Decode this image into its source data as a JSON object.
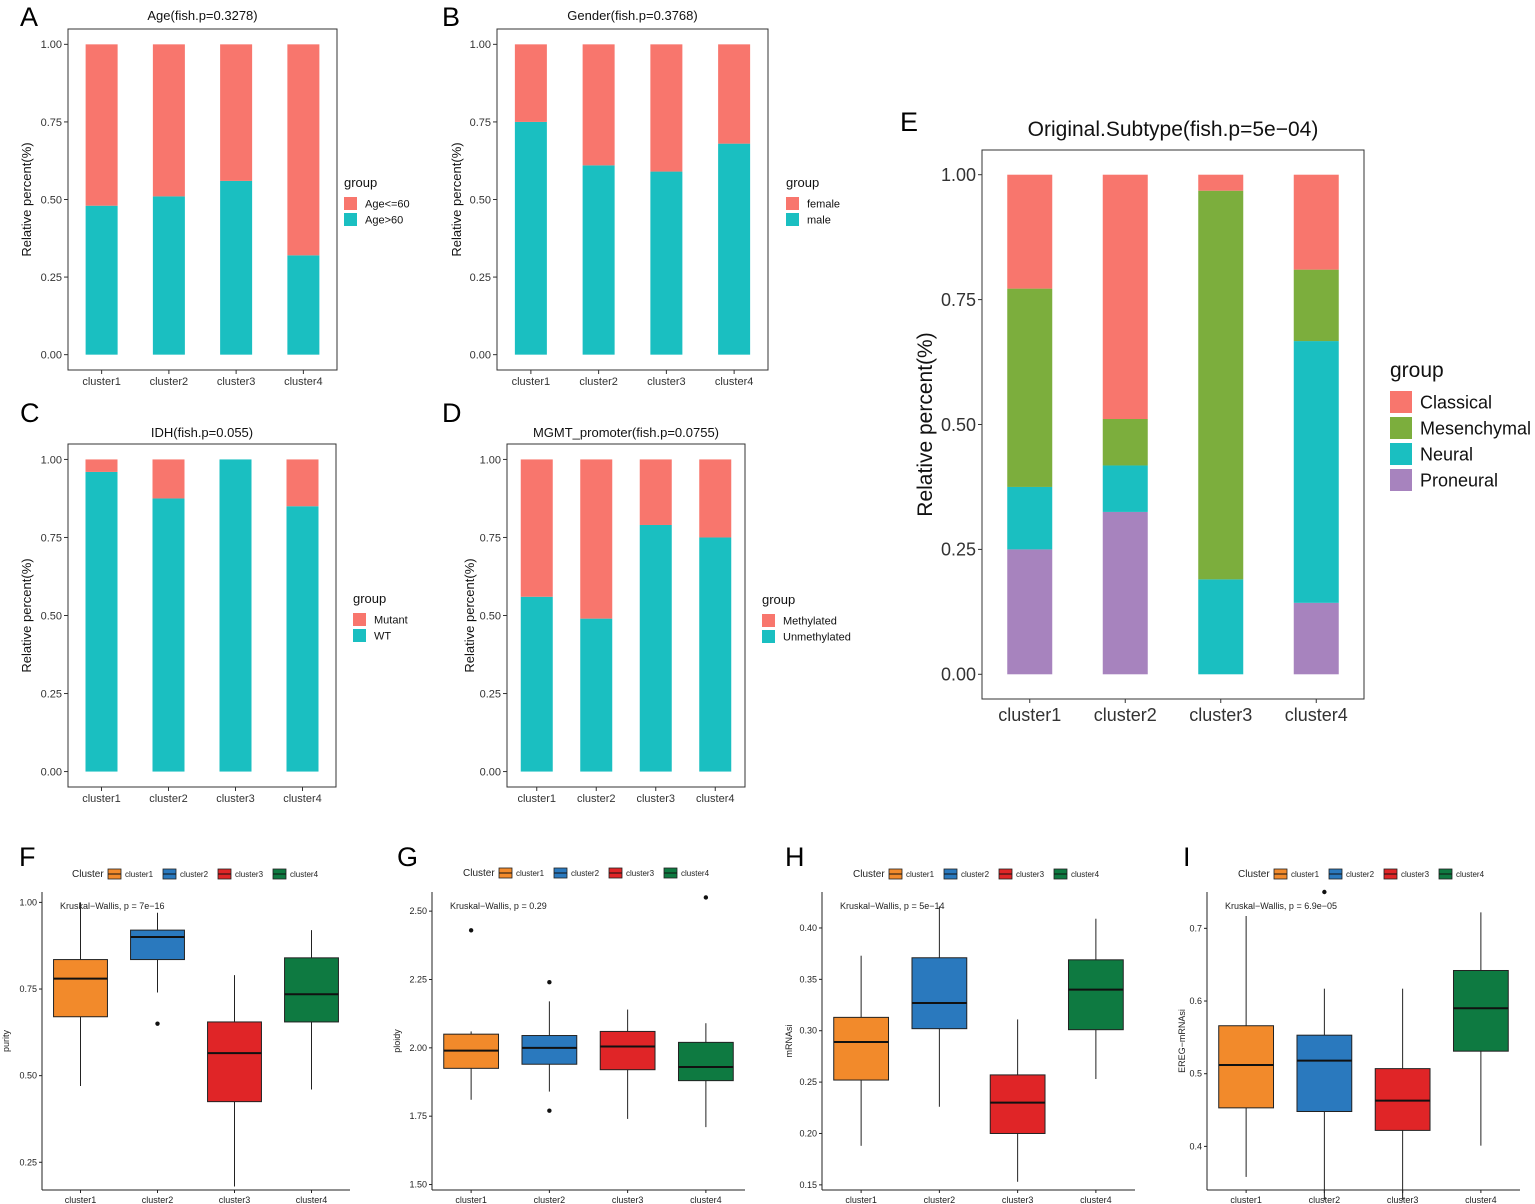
{
  "categories": [
    "cluster1",
    "cluster2",
    "cluster3",
    "cluster4"
  ],
  "colors": {
    "red": "#F8766D",
    "teal": "#1ABFC1",
    "green": "#7CAE3D",
    "purple": "#A783BE",
    "c1": "#F28A2B",
    "c2": "#2A79BE",
    "c3": "#E02527",
    "c4": "#0E7A41"
  },
  "chart_data": [
    {
      "panel": "A",
      "type": "bar",
      "stacked": true,
      "title": "Age(fish.p=0.3278)",
      "ylabel": "Relative percent(%)",
      "xlabel": "",
      "ylim": [
        0,
        1
      ],
      "yticks": [
        "0.00",
        "0.25",
        "0.50",
        "0.75",
        "1.00"
      ],
      "categories": [
        "cluster1",
        "cluster2",
        "cluster3",
        "cluster4"
      ],
      "legend_title": "group",
      "legend": [
        "Age<=60",
        "Age>60"
      ],
      "series": [
        {
          "name": "Age>60",
          "color": "teal",
          "values": [
            0.48,
            0.51,
            0.56,
            0.32
          ]
        },
        {
          "name": "Age<=60",
          "color": "red",
          "values": [
            0.52,
            0.49,
            0.44,
            0.68
          ]
        }
      ]
    },
    {
      "panel": "B",
      "type": "bar",
      "stacked": true,
      "title": "Gender(fish.p=0.3768)",
      "ylabel": "Relative percent(%)",
      "xlabel": "",
      "ylim": [
        0,
        1
      ],
      "yticks": [
        "0.00",
        "0.25",
        "0.50",
        "0.75",
        "1.00"
      ],
      "categories": [
        "cluster1",
        "cluster2",
        "cluster3",
        "cluster4"
      ],
      "legend_title": "group",
      "legend": [
        "female",
        "male"
      ],
      "series": [
        {
          "name": "male",
          "color": "teal",
          "values": [
            0.75,
            0.61,
            0.59,
            0.68
          ]
        },
        {
          "name": "female",
          "color": "red",
          "values": [
            0.25,
            0.39,
            0.41,
            0.32
          ]
        }
      ]
    },
    {
      "panel": "C",
      "type": "bar",
      "stacked": true,
      "title": "IDH(fish.p=0.055)",
      "ylabel": "Relative percent(%)",
      "xlabel": "",
      "ylim": [
        0,
        1
      ],
      "yticks": [
        "0.00",
        "0.25",
        "0.50",
        "0.75",
        "1.00"
      ],
      "categories": [
        "cluster1",
        "cluster2",
        "cluster3",
        "cluster4"
      ],
      "legend_title": "group",
      "legend": [
        "Mutant",
        "WT"
      ],
      "series": [
        {
          "name": "WT",
          "color": "teal",
          "values": [
            0.96,
            0.875,
            1.0,
            0.85
          ]
        },
        {
          "name": "Mutant",
          "color": "red",
          "values": [
            0.04,
            0.125,
            0.0,
            0.15
          ]
        }
      ]
    },
    {
      "panel": "D",
      "type": "bar",
      "stacked": true,
      "title": "MGMT_promoter(fish.p=0.0755)",
      "ylabel": "Relative percent(%)",
      "xlabel": "",
      "ylim": [
        0,
        1
      ],
      "yticks": [
        "0.00",
        "0.25",
        "0.50",
        "0.75",
        "1.00"
      ],
      "categories": [
        "cluster1",
        "cluster2",
        "cluster3",
        "cluster4"
      ],
      "legend_title": "group",
      "legend": [
        "Methylated",
        "Unmethylated"
      ],
      "series": [
        {
          "name": "Unmethylated",
          "color": "teal",
          "values": [
            0.56,
            0.49,
            0.79,
            0.75
          ]
        },
        {
          "name": "Methylated",
          "color": "red",
          "values": [
            0.44,
            0.51,
            0.21,
            0.25
          ]
        }
      ]
    },
    {
      "panel": "E",
      "type": "bar",
      "stacked": true,
      "title": "Original.Subtype(fish.p=5e−04)",
      "ylabel": "Relative percent(%)",
      "xlabel": "",
      "ylim": [
        0,
        1
      ],
      "yticks": [
        "0.00",
        "0.25",
        "0.50",
        "0.75",
        "1.00"
      ],
      "categories": [
        "cluster1",
        "cluster2",
        "cluster3",
        "cluster4"
      ],
      "legend_title": "group",
      "legend": [
        "Classical",
        "Mesenchymal",
        "Neural",
        "Proneural"
      ],
      "series": [
        {
          "name": "Proneural",
          "color": "purple",
          "values": [
            0.25,
            0.325,
            0.0,
            0.143
          ]
        },
        {
          "name": "Neural",
          "color": "teal",
          "values": [
            0.125,
            0.093,
            0.19,
            0.524
          ]
        },
        {
          "name": "Mesenchymal",
          "color": "green",
          "values": [
            0.397,
            0.093,
            0.778,
            0.143
          ]
        },
        {
          "name": "Classical",
          "color": "red",
          "values": [
            0.228,
            0.489,
            0.032,
            0.19
          ]
        }
      ]
    },
    {
      "panel": "F",
      "type": "box",
      "title": "",
      "ylabel": "purity",
      "xlabel": "",
      "annotation": "Kruskal−Wallis, p = 7e−16",
      "ylim": [
        0.17,
        1.03
      ],
      "yticks": [
        0.25,
        0.5,
        0.75,
        1.0
      ],
      "tick_labels": [
        "0.25",
        "0.50",
        "0.75",
        "1.00"
      ],
      "legend_title": "Cluster",
      "legend": [
        "cluster1",
        "cluster2",
        "cluster3",
        "cluster4"
      ],
      "categories": [
        "cluster1",
        "cluster2",
        "cluster3",
        "cluster4"
      ],
      "boxes": [
        {
          "min": 0.47,
          "q1": 0.67,
          "median": 0.78,
          "q3": 0.835,
          "max": 1.0,
          "outliers": []
        },
        {
          "min": 0.74,
          "q1": 0.835,
          "median": 0.9,
          "q3": 0.92,
          "max": 0.97,
          "outliers": [
            0.65
          ]
        },
        {
          "min": 0.18,
          "q1": 0.425,
          "median": 0.565,
          "q3": 0.655,
          "max": 0.79,
          "outliers": []
        },
        {
          "min": 0.46,
          "q1": 0.655,
          "median": 0.735,
          "q3": 0.84,
          "max": 0.92,
          "outliers": []
        }
      ]
    },
    {
      "panel": "G",
      "type": "box",
      "title": "",
      "ylabel": "ploidy",
      "xlabel": "",
      "annotation": "Kruskal−Wallis, p = 0.29",
      "ylim": [
        1.48,
        2.57
      ],
      "yticks": [
        1.5,
        1.75,
        2.0,
        2.25,
        2.5
      ],
      "tick_labels": [
        "1.50",
        "1.75",
        "2.00",
        "2.25",
        "2.50"
      ],
      "legend_title": "Cluster",
      "legend": [
        "cluster1",
        "cluster2",
        "cluster3",
        "cluster4"
      ],
      "categories": [
        "cluster1",
        "cluster2",
        "cluster3",
        "cluster4"
      ],
      "boxes": [
        {
          "min": 1.81,
          "q1": 1.925,
          "median": 1.99,
          "q3": 2.05,
          "max": 2.06,
          "outliers": [
            2.43
          ]
        },
        {
          "min": 1.84,
          "q1": 1.94,
          "median": 2.0,
          "q3": 2.045,
          "max": 2.17,
          "outliers": [
            2.24,
            1.77
          ]
        },
        {
          "min": 1.74,
          "q1": 1.92,
          "median": 2.005,
          "q3": 2.06,
          "max": 2.14,
          "outliers": []
        },
        {
          "min": 1.71,
          "q1": 1.88,
          "median": 1.93,
          "q3": 2.02,
          "max": 2.09,
          "outliers": [
            2.55
          ]
        }
      ]
    },
    {
      "panel": "H",
      "type": "box",
      "title": "",
      "ylabel": "mRNAsi",
      "xlabel": "",
      "annotation": "Kruskal−Wallis, p = 5e−14",
      "ylim": [
        0.145,
        0.435
      ],
      "yticks": [
        0.15,
        0.2,
        0.25,
        0.3,
        0.35,
        0.4
      ],
      "tick_labels": [
        "0.15",
        "0.20",
        "0.25",
        "0.30",
        "0.35",
        "0.40"
      ],
      "legend_title": "Cluster",
      "legend": [
        "cluster1",
        "cluster2",
        "cluster3",
        "cluster4"
      ],
      "categories": [
        "cluster1",
        "cluster2",
        "cluster3",
        "cluster4"
      ],
      "boxes": [
        {
          "min": 0.188,
          "q1": 0.252,
          "median": 0.289,
          "q3": 0.313,
          "max": 0.373,
          "outliers": []
        },
        {
          "min": 0.226,
          "q1": 0.302,
          "median": 0.327,
          "q3": 0.371,
          "max": 0.421,
          "outliers": []
        },
        {
          "min": 0.153,
          "q1": 0.2,
          "median": 0.23,
          "q3": 0.257,
          "max": 0.311,
          "outliers": []
        },
        {
          "min": 0.253,
          "q1": 0.301,
          "median": 0.34,
          "q3": 0.369,
          "max": 0.409,
          "outliers": []
        }
      ]
    },
    {
      "panel": "I",
      "type": "box",
      "title": "",
      "ylabel": "EREG−mRNAsi",
      "xlabel": "",
      "annotation": "Kruskal−Wallis, p = 6.9e−05",
      "ylim": [
        0.34,
        0.75
      ],
      "yticks": [
        0.4,
        0.5,
        0.6,
        0.7
      ],
      "tick_labels": [
        "0.4",
        "0.5",
        "0.6",
        "0.7"
      ],
      "legend_title": "Cluster",
      "legend": [
        "cluster1",
        "cluster2",
        "cluster3",
        "cluster4"
      ],
      "categories": [
        "cluster1",
        "cluster2",
        "cluster3",
        "cluster4"
      ],
      "boxes": [
        {
          "min": 0.358,
          "q1": 0.453,
          "median": 0.512,
          "q3": 0.566,
          "max": 0.717,
          "outliers": []
        },
        {
          "min": 0.326,
          "q1": 0.448,
          "median": 0.518,
          "q3": 0.553,
          "max": 0.617,
          "outliers": [
            0.75
          ]
        },
        {
          "min": 0.326,
          "q1": 0.422,
          "median": 0.463,
          "q3": 0.507,
          "max": 0.617,
          "outliers": []
        },
        {
          "min": 0.401,
          "q1": 0.531,
          "median": 0.59,
          "q3": 0.642,
          "max": 0.722,
          "outliers": []
        }
      ]
    }
  ]
}
